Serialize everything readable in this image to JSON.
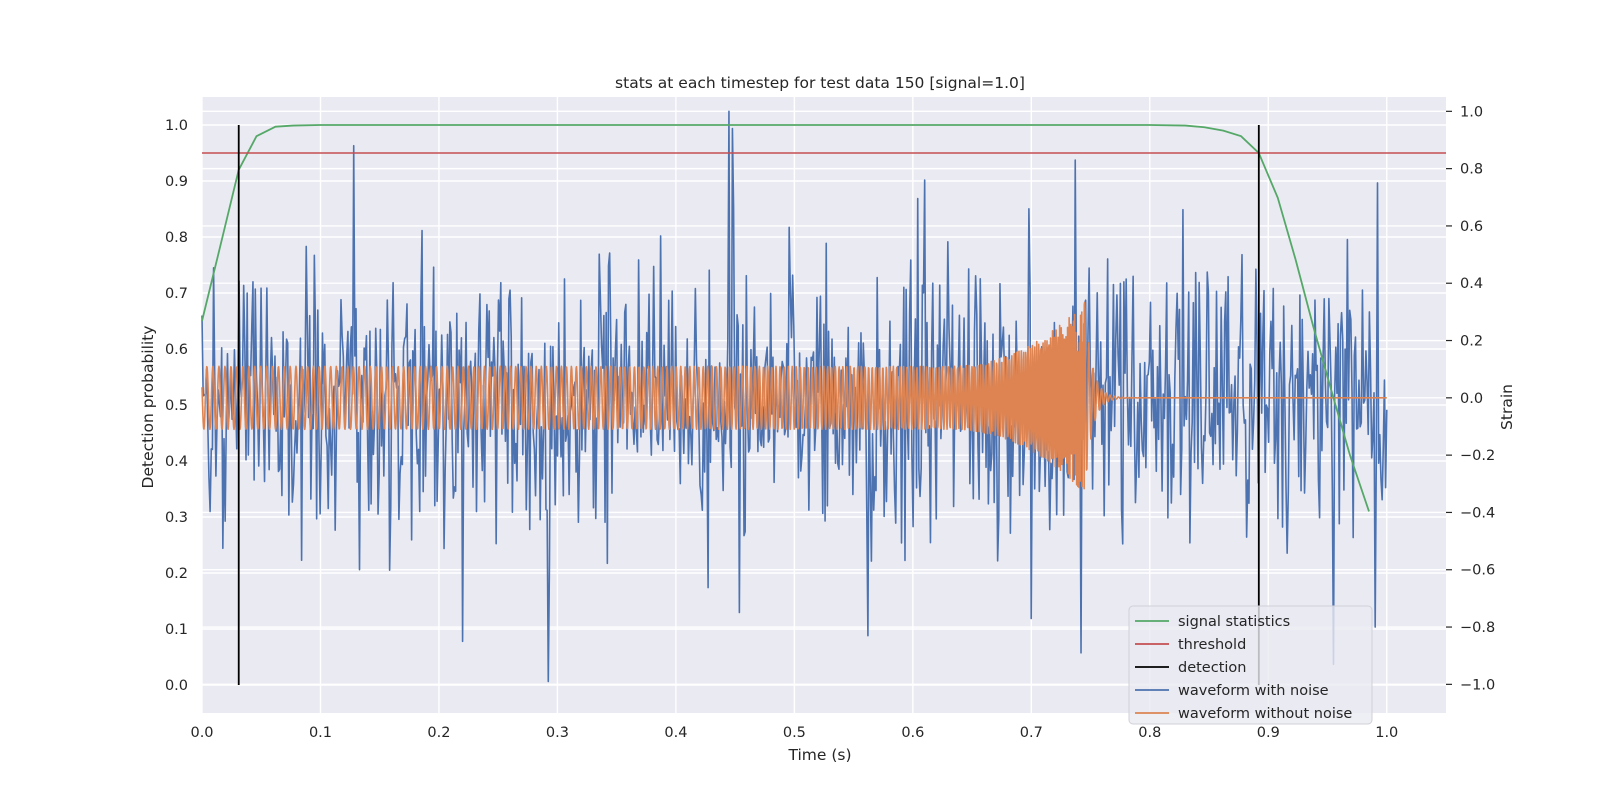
{
  "chart_data": {
    "type": "line",
    "title": "stats at each timestep for test data 150 [signal=1.0]",
    "xlabel": "Time (s)",
    "ylabel": "Detection probability",
    "y2label": "Strain",
    "xlim": [
      0.0,
      1.05
    ],
    "ylim": [
      -0.05,
      1.05
    ],
    "y2lim": [
      -1.1,
      1.05
    ],
    "xticks": [
      0.0,
      0.1,
      0.2,
      0.3,
      0.4,
      0.5,
      0.6,
      0.7,
      0.8,
      0.9,
      1.0
    ],
    "yticks": [
      0.0,
      0.1,
      0.2,
      0.3,
      0.4,
      0.5,
      0.6,
      0.7,
      0.8,
      0.9,
      1.0
    ],
    "y2ticks": [
      -1.0,
      -0.8,
      -0.6,
      -0.4,
      -0.2,
      0.0,
      0.2,
      0.4,
      0.6,
      0.8,
      1.0
    ],
    "xtick_labels": [
      "0.0",
      "0.1",
      "0.2",
      "0.3",
      "0.4",
      "0.5",
      "0.6",
      "0.7",
      "0.8",
      "0.9",
      "1.0"
    ],
    "ytick_labels": [
      "0.0",
      "0.1",
      "0.2",
      "0.3",
      "0.4",
      "0.5",
      "0.6",
      "0.7",
      "0.8",
      "0.9",
      "1.0"
    ],
    "y2tick_labels": [
      "−1.0",
      "−0.8",
      "−0.6",
      "−0.4",
      "−0.2",
      "0.0",
      "0.2",
      "0.4",
      "0.6",
      "0.8",
      "1.0"
    ],
    "grid": true,
    "legend_position": "lower-right",
    "series": [
      {
        "name": "signal statistics",
        "axis": "left",
        "color": "#55a868",
        "x": [
          0.0,
          0.015,
          0.031,
          0.046,
          0.062,
          0.077,
          0.1,
          0.2,
          0.3,
          0.4,
          0.5,
          0.6,
          0.7,
          0.8,
          0.83,
          0.846,
          0.862,
          0.877,
          0.892,
          0.908,
          0.923,
          0.938,
          0.954,
          0.969,
          0.985
        ],
        "y": [
          0.65,
          0.78,
          0.92,
          0.98,
          0.997,
          0.999,
          1.0,
          1.0,
          1.0,
          1.0,
          1.0,
          1.0,
          1.0,
          1.0,
          0.999,
          0.996,
          0.99,
          0.98,
          0.95,
          0.87,
          0.76,
          0.64,
          0.52,
          0.41,
          0.31
        ]
      },
      {
        "name": "threshold",
        "axis": "left",
        "color": "#c44e52",
        "x": [
          0.0,
          1.05
        ],
        "y": [
          0.95,
          0.95
        ]
      },
      {
        "name": "detection",
        "axis": "left",
        "color": "#000000",
        "segments": [
          {
            "x": 0.031,
            "y": [
              0.0,
              1.0
            ]
          },
          {
            "x": 0.892,
            "y": [
              0.0,
              1.0
            ]
          }
        ]
      },
      {
        "name": "waveform with noise",
        "axis": "right",
        "color": "#4c72b0",
        "generated": "noise",
        "x_range": [
          0.0,
          1.0
        ],
        "n_points": 1024,
        "spikes": [
          [
            0.128,
            0.88
          ],
          [
            0.445,
            1.0
          ],
          [
            0.448,
            0.94
          ],
          [
            0.292,
            -0.99
          ],
          [
            0.22,
            -0.85
          ],
          [
            0.742,
            -0.89
          ],
          [
            0.562,
            -0.83
          ],
          [
            0.955,
            -0.93
          ],
          [
            0.99,
            -0.8
          ],
          [
            0.992,
            0.75
          ],
          [
            0.737,
            0.83
          ],
          [
            0.698,
            0.66
          ],
          [
            0.61,
            0.76
          ],
          [
            0.7,
            -0.77
          ]
        ]
      },
      {
        "name": "waveform without noise",
        "axis": "right",
        "color": "#dd8452",
        "generated": "chirp",
        "x_range": [
          0.0,
          1.0
        ],
        "merger_time": 0.745,
        "peak_strain": 0.35,
        "early_amplitude": 0.11
      }
    ]
  }
}
